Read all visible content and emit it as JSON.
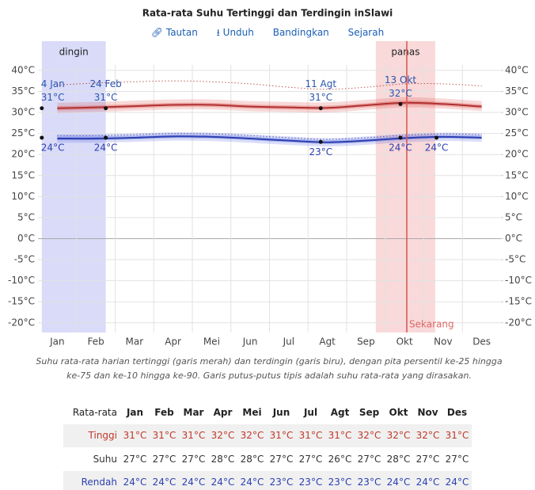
{
  "chart_data": {
    "type": "line",
    "title": "Rata-rata Suhu Tertinggi dan Terdingin inSlawi",
    "categories": [
      "Jan",
      "Feb",
      "Mar",
      "Apr",
      "Mei",
      "Jun",
      "Jul",
      "Agt",
      "Sep",
      "Okt",
      "Nov",
      "Des"
    ],
    "ylim": [
      -22.3,
      41.3
    ],
    "yticks": [
      {
        "value": 40,
        "label": "40°C"
      },
      {
        "value": 35,
        "label": "35°C"
      },
      {
        "value": 30,
        "label": "30°C"
      },
      {
        "value": 25,
        "label": "25°C"
      },
      {
        "value": 20,
        "label": "20°C"
      },
      {
        "value": 15,
        "label": "15°C"
      },
      {
        "value": 10,
        "label": "10°C"
      },
      {
        "value": 5,
        "label": "5°C"
      },
      {
        "value": 0,
        "label": "0°C"
      },
      {
        "value": -5,
        "label": "-5°C"
      },
      {
        "value": -10,
        "label": "-10°C"
      },
      {
        "value": -15,
        "label": "-15°C"
      },
      {
        "value": -20,
        "label": "-20°C"
      }
    ],
    "y2lim": [
      -22.3,
      41.3
    ],
    "y2ticks": [
      {
        "value": 40,
        "label": "40°C"
      },
      {
        "value": 35,
        "label": "35°C"
      },
      {
        "value": 30,
        "label": "30°C"
      },
      {
        "value": 25,
        "label": "25°C"
      },
      {
        "value": 20,
        "label": "20°C"
      },
      {
        "value": 15,
        "label": "15°C"
      },
      {
        "value": 10,
        "label": "10°C"
      },
      {
        "value": 5,
        "label": "5°C"
      },
      {
        "value": 0,
        "label": "0°C"
      },
      {
        "value": -5,
        "label": "-5°C"
      },
      {
        "value": -10,
        "label": "-10°C"
      },
      {
        "value": -15,
        "label": "-15°C"
      },
      {
        "value": -20,
        "label": "-20°C"
      }
    ],
    "grid": true,
    "series": [
      {
        "color": "#b03030",
        "band_color": "#d9534f",
        "values": [
          31.0,
          31.2,
          31.5,
          31.8,
          31.8,
          31.4,
          31.2,
          31.1,
          31.7,
          32.3,
          32.0,
          31.4
        ],
        "p25": [
          30.5,
          30.7,
          31.0,
          31.3,
          31.3,
          30.9,
          30.7,
          30.6,
          31.2,
          31.8,
          31.5,
          30.9
        ],
        "p75": [
          31.5,
          31.7,
          32.0,
          32.3,
          32.3,
          31.9,
          31.7,
          31.6,
          32.2,
          32.8,
          32.5,
          31.9
        ],
        "p10": [
          29.9,
          30.1,
          30.4,
          30.7,
          30.7,
          30.3,
          30.1,
          30.0,
          30.6,
          31.2,
          30.9,
          30.3
        ],
        "p90": [
          32.3,
          32.5,
          32.8,
          33.1,
          33.1,
          32.7,
          32.5,
          32.4,
          33.0,
          33.6,
          33.3,
          32.7
        ],
        "feels": [
          36.5,
          37.0,
          37.3,
          37.5,
          37.3,
          36.8,
          36.0,
          35.5,
          36.0,
          36.8,
          36.8,
          36.3
        ]
      },
      {
        "color": "#2b3fb0",
        "band_color": "#5a6be0",
        "values": [
          23.8,
          23.8,
          24.0,
          24.3,
          24.2,
          23.8,
          23.3,
          22.9,
          23.3,
          23.9,
          24.2,
          24.0
        ],
        "p25": [
          23.4,
          23.4,
          23.6,
          23.9,
          23.8,
          23.4,
          22.9,
          22.5,
          22.9,
          23.5,
          23.8,
          23.6
        ],
        "p75": [
          24.3,
          24.3,
          24.5,
          24.8,
          24.7,
          24.3,
          23.8,
          23.4,
          23.8,
          24.4,
          24.7,
          24.5
        ],
        "p10": [
          22.8,
          22.8,
          23.0,
          23.3,
          23.2,
          22.8,
          22.3,
          21.9,
          22.3,
          22.9,
          23.2,
          23.0
        ],
        "p90": [
          24.8,
          24.8,
          25.0,
          25.3,
          25.2,
          24.8,
          24.3,
          23.9,
          24.3,
          24.9,
          25.2,
          25.0
        ],
        "feels": [
          24.5,
          24.5,
          24.7,
          25.0,
          24.9,
          24.5,
          24.0,
          23.6,
          24.0,
          24.6,
          24.9,
          24.7
        ]
      }
    ],
    "regions": [
      {
        "label": "dingin",
        "color": "#c9ccf5",
        "start": [
          0,
          4
        ],
        "end": [
          1,
          24
        ]
      },
      {
        "label": "panas",
        "color": "#f7c9c9",
        "start": [
          8,
          24
        ],
        "end": [
          10,
          10
        ]
      }
    ],
    "now": {
      "label": "Sekarang",
      "month": 9,
      "day": 18
    },
    "annotations": [
      {
        "series": 0,
        "date": "4 Jan",
        "value": 31,
        "label": "31°C",
        "month": 0,
        "day": 4
      },
      {
        "series": 0,
        "date": "24 Feb",
        "value": 31,
        "label": "31°C",
        "month": 1,
        "day": 24
      },
      {
        "series": 0,
        "date": "11 Agt",
        "value": 31,
        "label": "31°C",
        "month": 7,
        "day": 11
      },
      {
        "series": 0,
        "date": "13 Okt",
        "value": 32,
        "label": "32°C",
        "month": 9,
        "day": 13
      },
      {
        "series": 1,
        "value": 24,
        "label": "24°C",
        "month": 0,
        "day": 4
      },
      {
        "series": 1,
        "value": 24,
        "label": "24°C",
        "month": 1,
        "day": 24
      },
      {
        "series": 1,
        "value": 23,
        "label": "23°C",
        "month": 7,
        "day": 11
      },
      {
        "series": 1,
        "value": 24,
        "label": "24°C",
        "month": 9,
        "day": 13
      },
      {
        "series": 1,
        "value": 24,
        "label": "24°C",
        "month": 10,
        "day": 11
      }
    ]
  },
  "links": [
    "Tautan",
    "Unduh",
    "Bandingkan",
    "Sejarah"
  ],
  "caption": "Suhu rata-rata harian tertinggi (garis merah) dan terdingin (garis biru), dengan pita persentil ke-25 hingga ke-75 dan ke-10 hingga ke-90. Garis putus-putus tipis adalah suhu rata-rata yang dirasakan.",
  "table": {
    "header": [
      "Rata-rata",
      "Jan",
      "Feb",
      "Mar",
      "Apr",
      "Mei",
      "Jun",
      "Jul",
      "Agt",
      "Sep",
      "Okt",
      "Nov",
      "Des"
    ],
    "rows": [
      [
        "Tinggi",
        "31°C",
        "31°C",
        "31°C",
        "32°C",
        "32°C",
        "31°C",
        "31°C",
        "31°C",
        "32°C",
        "32°C",
        "32°C",
        "31°C"
      ],
      [
        "Suhu",
        "27°C",
        "27°C",
        "27°C",
        "28°C",
        "28°C",
        "27°C",
        "27°C",
        "26°C",
        "27°C",
        "28°C",
        "27°C",
        "27°C"
      ],
      [
        "Rendah",
        "24°C",
        "24°C",
        "24°C",
        "24°C",
        "24°C",
        "23°C",
        "23°C",
        "23°C",
        "23°C",
        "24°C",
        "24°C",
        "24°C"
      ]
    ]
  }
}
